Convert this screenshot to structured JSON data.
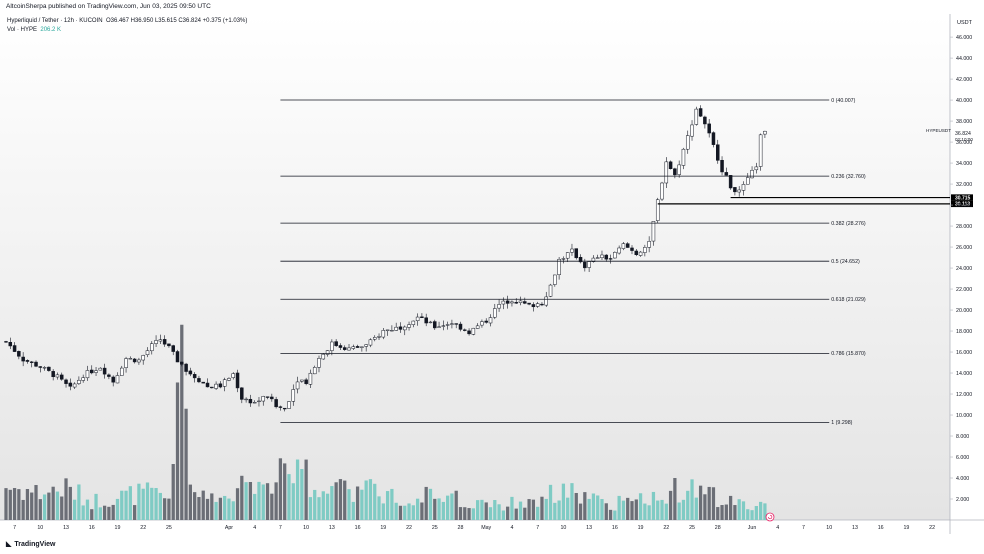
{
  "header": {
    "text": "AltcoinSherpa published on TradingView.com, Jun 03, 2025 09:50 UTC"
  },
  "legend": {
    "symbol": "Hyperliquid / Tether · 12h · KUCOIN",
    "ohlc": "O36.467  H36.950  L35.615  C36.824  +0.375 (+1.03%)",
    "vol_label": "Vol · HYPE",
    "vol_value": "206.2 K"
  },
  "footer": {
    "brand": "TradingView"
  },
  "colors": {
    "up": "#ffffff",
    "down": "#131722",
    "vol_up": "#7fcbc4",
    "vol_down": "#6b6e76",
    "accent": "#2962ff"
  },
  "chart_data": {
    "type": "candlestick",
    "title": "Hyperliquid / Tether · 12h · KUCOIN",
    "ylabel": "USDT",
    "ylim": [
      0,
      48.2
    ],
    "y_ticks": [
      "2.000",
      "4.000",
      "6.000",
      "8.000",
      "10.000",
      "12.000",
      "14.000",
      "16.000",
      "18.000",
      "20.000",
      "22.000",
      "24.000",
      "26.000",
      "28.000",
      "30.000",
      "32.000",
      "34.000",
      "36.000",
      "38.000",
      "40.000",
      "42.000",
      "44.000",
      "46.000"
    ],
    "x_ticks": [
      {
        "label": "7",
        "date": "2025-03-07"
      },
      {
        "label": "10",
        "date": "2025-03-10"
      },
      {
        "label": "13",
        "date": "2025-03-13"
      },
      {
        "label": "16",
        "date": "2025-03-16"
      },
      {
        "label": "19",
        "date": "2025-03-19"
      },
      {
        "label": "22",
        "date": "2025-03-22"
      },
      {
        "label": "25",
        "date": "2025-03-25"
      },
      {
        "label": "Apr",
        "date": "2025-04-01"
      },
      {
        "label": "4",
        "date": "2025-04-04"
      },
      {
        "label": "7",
        "date": "2025-04-07"
      },
      {
        "label": "10",
        "date": "2025-04-10"
      },
      {
        "label": "13",
        "date": "2025-04-13"
      },
      {
        "label": "16",
        "date": "2025-04-16"
      },
      {
        "label": "19",
        "date": "2025-04-19"
      },
      {
        "label": "22",
        "date": "2025-04-22"
      },
      {
        "label": "25",
        "date": "2025-04-25"
      },
      {
        "label": "28",
        "date": "2025-04-28"
      },
      {
        "label": "May",
        "date": "2025-05-01"
      },
      {
        "label": "4",
        "date": "2025-05-04"
      },
      {
        "label": "7",
        "date": "2025-05-07"
      },
      {
        "label": "10",
        "date": "2025-05-10"
      },
      {
        "label": "13",
        "date": "2025-05-13"
      },
      {
        "label": "16",
        "date": "2025-05-16"
      },
      {
        "label": "19",
        "date": "2025-05-19"
      },
      {
        "label": "22",
        "date": "2025-05-22"
      },
      {
        "label": "25",
        "date": "2025-05-25"
      },
      {
        "label": "28",
        "date": "2025-05-28"
      },
      {
        "label": "Jun",
        "date": "2025-06-01"
      },
      {
        "label": "4",
        "date": "2025-06-04"
      },
      {
        "label": "7",
        "date": "2025-06-07"
      },
      {
        "label": "10",
        "date": "2025-06-10"
      },
      {
        "label": "13",
        "date": "2025-06-13"
      },
      {
        "label": "16",
        "date": "2025-06-16"
      },
      {
        "label": "19",
        "date": "2025-06-19"
      },
      {
        "label": "22",
        "date": "2025-06-22"
      }
    ],
    "x_range": [
      "2025-03-06T00:00",
      "2025-06-23T12:00"
    ],
    "close_path": [
      [
        "2025-03-06T00:00",
        17.0
      ],
      [
        "2025-03-08T00:00",
        15.3
      ],
      [
        "2025-03-10T00:00",
        14.6
      ],
      [
        "2025-03-12T00:00",
        13.6
      ],
      [
        "2025-03-13T12:00",
        12.5
      ],
      [
        "2025-03-15T00:00",
        13.8
      ],
      [
        "2025-03-17T00:00",
        14.6
      ],
      [
        "2025-03-18T12:00",
        13.2
      ],
      [
        "2025-03-20T00:00",
        15.4
      ],
      [
        "2025-03-21T12:00",
        15.2
      ],
      [
        "2025-03-23T00:00",
        16.6
      ],
      [
        "2025-03-24T00:00",
        17.2
      ],
      [
        "2025-03-25T00:00",
        16.4
      ],
      [
        "2025-03-26T12:00",
        14.6
      ],
      [
        "2025-03-28T00:00",
        13.7
      ],
      [
        "2025-03-29T12:00",
        12.7
      ],
      [
        "2025-03-31T00:00",
        12.8
      ],
      [
        "2025-04-01T12:00",
        13.9
      ],
      [
        "2025-04-02T12:00",
        11.6
      ],
      [
        "2025-04-04T00:00",
        11.2
      ],
      [
        "2025-04-05T12:00",
        11.8
      ],
      [
        "2025-04-06T12:00",
        10.8
      ],
      [
        "2025-04-07T12:00",
        10.6
      ],
      [
        "2025-04-09T00:00",
        13.4
      ],
      [
        "2025-04-10T00:00",
        13.2
      ],
      [
        "2025-04-11T12:00",
        15.4
      ],
      [
        "2025-04-13T00:00",
        16.8
      ],
      [
        "2025-04-15T00:00",
        16.3
      ],
      [
        "2025-04-17T00:00",
        16.6
      ],
      [
        "2025-04-19T00:00",
        18.0
      ],
      [
        "2025-04-21T00:00",
        18.4
      ],
      [
        "2025-04-23T00:00",
        19.3
      ],
      [
        "2025-04-25T00:00",
        18.4
      ],
      [
        "2025-04-27T00:00",
        18.8
      ],
      [
        "2025-04-29T00:00",
        17.9
      ],
      [
        "2025-05-01T00:00",
        19.0
      ],
      [
        "2025-05-02T12:00",
        20.5
      ],
      [
        "2025-05-04T00:00",
        21.0
      ],
      [
        "2025-05-06T00:00",
        20.4
      ],
      [
        "2025-05-07T12:00",
        20.7
      ],
      [
        "2025-05-08T12:00",
        22.3
      ],
      [
        "2025-05-09T12:00",
        24.8
      ],
      [
        "2025-05-11T00:00",
        25.6
      ],
      [
        "2025-05-12T12:00",
        24.2
      ],
      [
        "2025-05-14T00:00",
        25.1
      ],
      [
        "2025-05-15T12:00",
        24.9
      ],
      [
        "2025-05-17T00:00",
        26.2
      ],
      [
        "2025-05-18T12:00",
        25.4
      ],
      [
        "2025-05-20T00:00",
        26.3
      ],
      [
        "2025-05-21T00:00",
        30.4
      ],
      [
        "2025-05-22T00:00",
        34.2
      ],
      [
        "2025-05-23T00:00",
        32.8
      ],
      [
        "2025-05-24T12:00",
        36.5
      ],
      [
        "2025-05-25T12:00",
        39.2
      ],
      [
        "2025-05-26T12:00",
        37.8
      ],
      [
        "2025-05-27T12:00",
        35.6
      ],
      [
        "2025-05-28T12:00",
        33.4
      ],
      [
        "2025-05-29T12:00",
        31.8
      ],
      [
        "2025-05-30T12:00",
        31.2
      ],
      [
        "2025-05-31T12:00",
        32.4
      ],
      [
        "2025-06-01T12:00",
        33.8
      ],
      [
        "2025-06-02T00:00",
        36.5
      ],
      [
        "2025-06-02T12:00",
        36.824
      ]
    ],
    "volume_path": [
      [
        "2025-03-06T00:00",
        3.2
      ],
      [
        "2025-03-10T00:00",
        2.6
      ],
      [
        "2025-03-13T00:00",
        3.0
      ],
      [
        "2025-03-16T00:00",
        1.8
      ],
      [
        "2025-03-19T00:00",
        2.2
      ],
      [
        "2025-03-22T00:00",
        2.6
      ],
      [
        "2025-03-25T00:00",
        2.1
      ],
      [
        "2025-03-26T12:00",
        18.6
      ],
      [
        "2025-03-27T12:00",
        2.6
      ],
      [
        "2025-04-01T00:00",
        1.7
      ],
      [
        "2025-04-03T00:00",
        3.4
      ],
      [
        "2025-04-06T00:00",
        4.2
      ],
      [
        "2025-04-07T12:00",
        5.6
      ],
      [
        "2025-04-10T00:00",
        4.1
      ],
      [
        "2025-04-13T00:00",
        2.8
      ],
      [
        "2025-04-16T00:00",
        3.2
      ],
      [
        "2025-04-19T00:00",
        2.5
      ],
      [
        "2025-04-22T00:00",
        2.4
      ],
      [
        "2025-04-25T00:00",
        2.6
      ],
      [
        "2025-04-28T00:00",
        1.8
      ],
      [
        "2025-05-01T00:00",
        1.7
      ],
      [
        "2025-05-04T00:00",
        1.6
      ],
      [
        "2025-05-07T00:00",
        1.9
      ],
      [
        "2025-05-10T00:00",
        2.8
      ],
      [
        "2025-05-13T00:00",
        2.0
      ],
      [
        "2025-05-16T00:00",
        1.6
      ],
      [
        "2025-05-19T00:00",
        1.8
      ],
      [
        "2025-05-22T00:00",
        2.8
      ],
      [
        "2025-05-25T00:00",
        3.0
      ],
      [
        "2025-05-28T00:00",
        2.0
      ],
      [
        "2025-05-31T00:00",
        1.9
      ],
      [
        "2025-06-02T12:00",
        1.3
      ]
    ],
    "fib_levels": [
      {
        "label": "0 (40.007)",
        "value": 40.007,
        "start": "2025-04-07T00:00"
      },
      {
        "label": "0.236 (32.760)",
        "value": 32.76,
        "start": "2025-04-07T00:00"
      },
      {
        "label": "0.382 (28.276)",
        "value": 28.276,
        "start": "2025-04-07T00:00"
      },
      {
        "label": "0.5 (24.652)",
        "value": 24.652,
        "start": "2025-04-07T00:00"
      },
      {
        "label": "0.618 (21.029)",
        "value": 21.029,
        "start": "2025-04-07T00:00"
      },
      {
        "label": "0.786 (15.870)",
        "value": 15.87,
        "start": "2025-04-07T00:00"
      },
      {
        "label": "1 (9.298)",
        "value": 9.298,
        "start": "2025-04-07T00:00"
      }
    ],
    "fib_end": "2025-06-10T00:00",
    "h_lines": [
      {
        "value": 30.715,
        "label": "30.715",
        "start": "2025-05-29T12:00"
      },
      {
        "value": 30.113,
        "label": "30.113",
        "start": "2025-05-21T00:00"
      }
    ],
    "last_price": {
      "symbol": "HYPEUSDT",
      "value": 36.824,
      "value_label": "36.824",
      "countdown": "02:10:00"
    },
    "volume_scale": {
      "max_price_units": 18.6,
      "baseline": 0
    }
  }
}
